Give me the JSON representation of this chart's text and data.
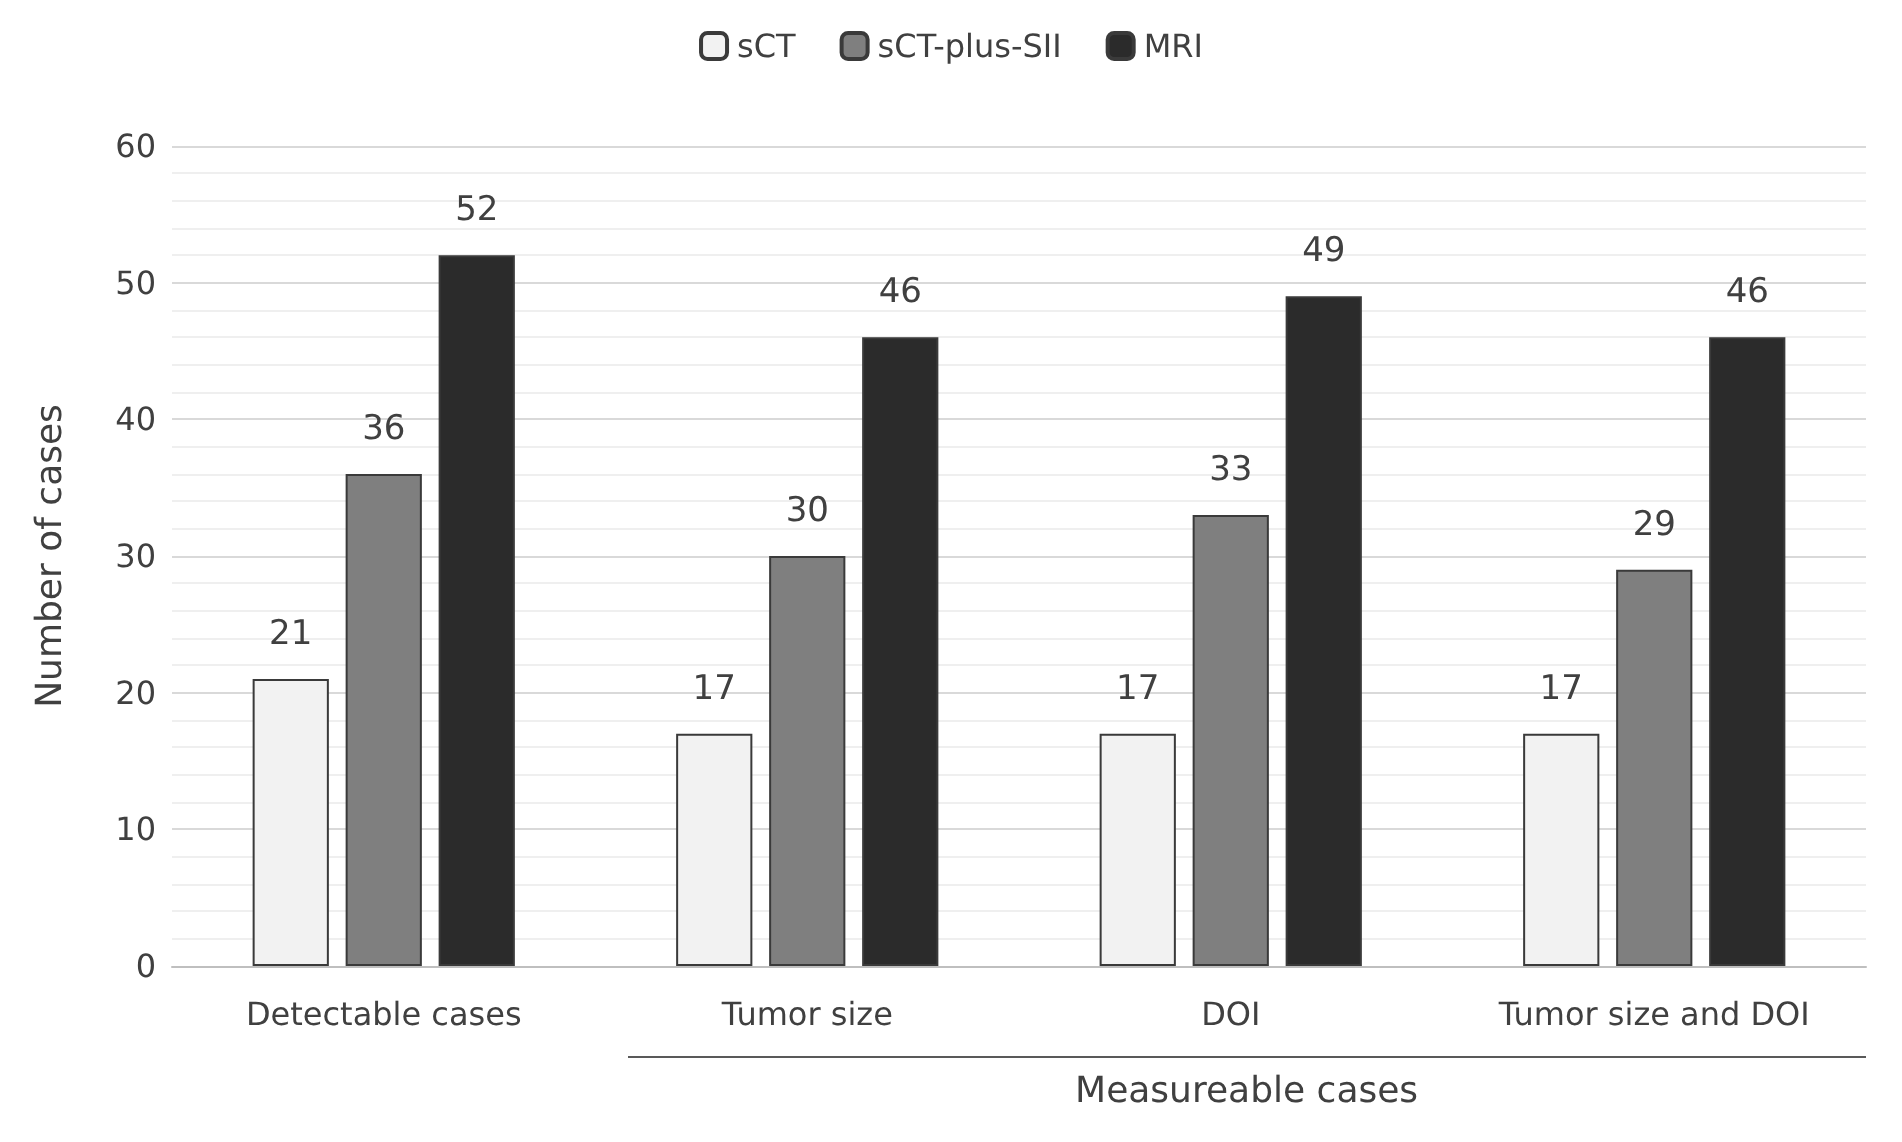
{
  "chart_data": {
    "type": "bar",
    "ylabel": "Number of cases",
    "xlabel": "Measureable cases",
    "categories": [
      "Detectable cases",
      "Tumor size",
      "DOI",
      "Tumor size and DOI"
    ],
    "series": [
      {
        "name": "sCT",
        "color": "#f2f2f2",
        "values": [
          21,
          17,
          17,
          17
        ]
      },
      {
        "name": "sCT-plus-SII",
        "color": "#7f7f7f",
        "values": [
          36,
          30,
          33,
          29
        ]
      },
      {
        "name": "MRI",
        "color": "#2b2b2b",
        "values": [
          52,
          46,
          49,
          46
        ]
      }
    ],
    "ylim": [
      0,
      60
    ],
    "yticks": [
      0,
      10,
      20,
      30,
      40,
      50,
      60
    ],
    "grid": true,
    "legend": "top",
    "data_labels": true
  }
}
